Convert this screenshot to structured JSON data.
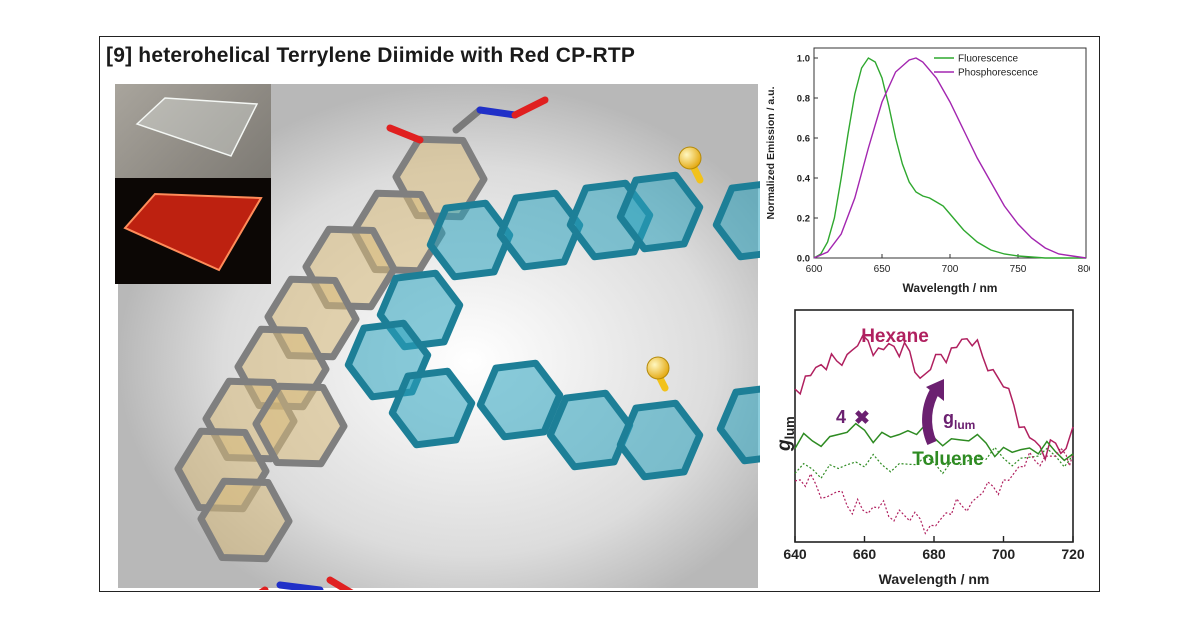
{
  "figure": {
    "title": "[9] heterohelical Terrylene Diimide with  Red CP-RTP"
  },
  "colors": {
    "hexane": "#b0205f",
    "toluene": "#2e8b22",
    "fluorescence": "#2fa82f",
    "phosphorescence": "#a326b0",
    "core_ring": "#d7b97a",
    "helix_ring": "#2aa3bd",
    "sulfur": "#f2c21a",
    "oxygen": "#e02020",
    "nitrogen": "#2030c8",
    "arrow": "#6b2070"
  },
  "annotations": {
    "multiplier": "4",
    "times_symbol": "✖",
    "glum_main": "g",
    "glum_sub": "lum"
  },
  "chart_data": [
    {
      "type": "line",
      "title": "",
      "xlabel": "Wavelength / nm",
      "ylabel": "Normalized Emission / a.u.",
      "xlim": [
        600,
        800
      ],
      "ylim": [
        0.0,
        1.05
      ],
      "xticks": [
        "600",
        "650",
        "700",
        "750",
        "800"
      ],
      "yticks": [
        "0.0",
        "0.2",
        "0.4",
        "0.6",
        "0.8",
        "1.0"
      ],
      "legend_position": "top-right",
      "grid": false,
      "series": [
        {
          "name": "Fluorescence",
          "x": [
            600,
            605,
            610,
            615,
            620,
            625,
            630,
            635,
            640,
            645,
            650,
            655,
            660,
            665,
            670,
            675,
            680,
            685,
            690,
            695,
            700,
            705,
            710,
            720,
            730,
            740,
            750,
            760,
            770,
            780,
            790,
            800
          ],
          "y": [
            0.0,
            0.02,
            0.08,
            0.2,
            0.4,
            0.62,
            0.82,
            0.95,
            1.0,
            0.98,
            0.9,
            0.76,
            0.6,
            0.47,
            0.38,
            0.33,
            0.31,
            0.3,
            0.28,
            0.26,
            0.22,
            0.18,
            0.14,
            0.08,
            0.04,
            0.02,
            0.01,
            0.005,
            0.0,
            0.0,
            0.0,
            0.0
          ]
        },
        {
          "name": "Phosphorescence",
          "x": [
            600,
            610,
            620,
            630,
            640,
            650,
            660,
            670,
            675,
            680,
            690,
            700,
            710,
            720,
            730,
            740,
            750,
            760,
            770,
            780,
            790,
            800
          ],
          "y": [
            0.0,
            0.03,
            0.12,
            0.3,
            0.55,
            0.78,
            0.93,
            0.99,
            1.0,
            0.98,
            0.9,
            0.78,
            0.64,
            0.5,
            0.38,
            0.26,
            0.17,
            0.1,
            0.05,
            0.02,
            0.01,
            0.0
          ]
        }
      ]
    },
    {
      "type": "line",
      "title": "",
      "xlabel": "Wavelength / nm",
      "ylabel": "glum",
      "xlim": [
        640,
        720
      ],
      "xticks": [
        "640",
        "660",
        "680",
        "700",
        "720"
      ],
      "legend_position": "inline",
      "grid": false,
      "series": [
        {
          "name": "Hexane",
          "x": [
            640,
            643,
            646,
            649,
            652,
            655,
            658,
            661,
            664,
            667,
            670,
            673,
            676,
            679,
            682,
            685,
            688,
            691,
            694,
            697,
            700,
            703,
            706,
            709,
            712,
            715,
            718,
            720
          ],
          "y": [
            0.6,
            0.72,
            0.8,
            0.78,
            0.86,
            0.92,
            1.0,
            1.05,
            0.98,
            1.02,
            0.9,
            0.95,
            0.7,
            0.78,
            0.92,
            0.98,
            1.06,
            1.0,
            0.9,
            0.78,
            0.62,
            0.45,
            0.25,
            0.12,
            -0.05,
            0.1,
            0.05,
            0.25
          ]
        },
        {
          "name": "Toluene",
          "x": [
            640,
            645,
            650,
            655,
            660,
            665,
            670,
            675,
            680,
            685,
            690,
            695,
            700,
            705,
            710,
            715,
            720
          ],
          "y": [
            0.05,
            0.12,
            0.16,
            0.2,
            0.22,
            0.2,
            0.18,
            0.18,
            0.15,
            0.14,
            0.12,
            0.1,
            0.06,
            0.04,
            0.0,
            0.02,
            0.0
          ]
        },
        {
          "name": "",
          "x": [
            640,
            645,
            650,
            655,
            660,
            665,
            670,
            675,
            680,
            685,
            690,
            695,
            700,
            705,
            710,
            715,
            720
          ],
          "y": [
            -0.18,
            -0.14,
            -0.1,
            -0.1,
            -0.12,
            -0.1,
            -0.09,
            -0.1,
            -0.08,
            -0.07,
            -0.06,
            -0.05,
            -0.04,
            -0.04,
            -0.02,
            -0.02,
            -0.01
          ]
        },
        {
          "name": "",
          "x": [
            640,
            643,
            646,
            649,
            652,
            655,
            658,
            661,
            664,
            667,
            670,
            673,
            676,
            679,
            682,
            685,
            688,
            691,
            694,
            697,
            700,
            703,
            706,
            709,
            712,
            715,
            718,
            720
          ],
          "y": [
            -0.25,
            -0.3,
            -0.28,
            -0.4,
            -0.35,
            -0.48,
            -0.42,
            -0.55,
            -0.5,
            -0.58,
            -0.52,
            -0.62,
            -0.6,
            -0.66,
            -0.6,
            -0.56,
            -0.48,
            -0.44,
            -0.36,
            -0.3,
            -0.24,
            -0.18,
            -0.12,
            -0.06,
            -0.02,
            -0.02,
            -0.01,
            0.0
          ]
        }
      ]
    }
  ]
}
